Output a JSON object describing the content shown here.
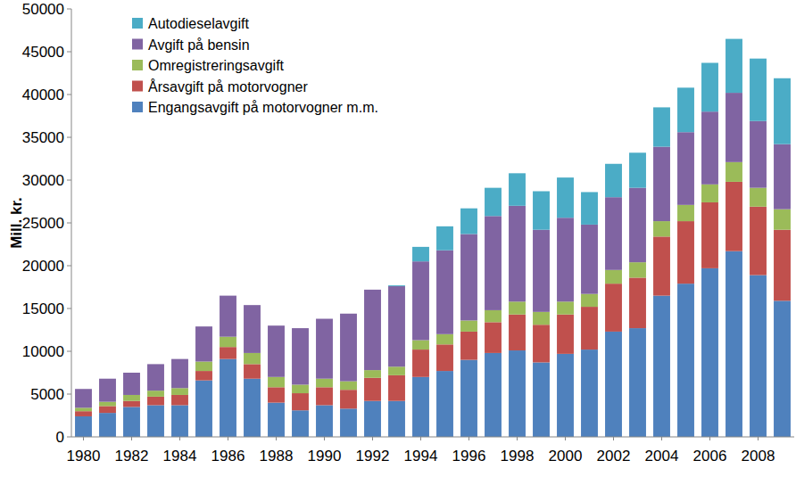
{
  "chart_data": {
    "type": "bar",
    "stacked": true,
    "grid": false,
    "legend": "upper left",
    "y_label": "Mill. kr.",
    "categories": [
      "1980",
      null,
      "1982",
      null,
      "1984",
      null,
      "1986",
      null,
      "1988",
      null,
      "1990",
      null,
      "1992",
      null,
      "1994",
      null,
      "1996",
      null,
      "1998",
      null,
      "2000",
      null,
      "2002",
      null,
      "2004",
      null,
      "2006",
      null,
      "2008",
      null
    ],
    "ylim": [
      0,
      50000
    ],
    "yticks": [
      0,
      5000,
      10000,
      15000,
      20000,
      25000,
      30000,
      35000,
      40000,
      45000,
      50000
    ],
    "series": [
      {
        "name": "Engangsavgift på motorvogner m.m.",
        "color": "#4f81bd",
        "values": [
          2400,
          2800,
          3500,
          3700,
          3700,
          6600,
          9100,
          6800,
          4000,
          3100,
          3700,
          3300,
          4200,
          4200,
          7000,
          7700,
          9000,
          9800,
          10100,
          8700,
          9700,
          10200,
          12300,
          12700,
          16500,
          17900,
          19700,
          21700,
          18900,
          15900
        ]
      },
      {
        "name": "Årsavgift på motorvogner",
        "color": "#c0504d",
        "values": [
          600,
          800,
          700,
          1000,
          1200,
          1100,
          1400,
          1700,
          1800,
          2000,
          2100,
          2200,
          2700,
          3000,
          3200,
          3100,
          3300,
          3600,
          4200,
          4400,
          4600,
          5000,
          5600,
          5900,
          6900,
          7300,
          7700,
          8100,
          8000,
          8300
        ]
      },
      {
        "name": "Omregistreringsavgift",
        "color": "#9bbb59",
        "values": [
          400,
          500,
          700,
          700,
          800,
          1100,
          1200,
          1300,
          1200,
          1000,
          1000,
          1000,
          900,
          1000,
          1100,
          1200,
          1300,
          1400,
          1500,
          1500,
          1500,
          1500,
          1600,
          1800,
          1800,
          1900,
          2100,
          2300,
          2200,
          2400
        ]
      },
      {
        "name": "Avgift på bensin",
        "color": "#8064a2",
        "values": [
          2200,
          2700,
          2600,
          3100,
          3400,
          4100,
          4800,
          5600,
          6000,
          6600,
          7000,
          7900,
          9400,
          9400,
          9200,
          9800,
          10100,
          11000,
          11200,
          9600,
          9800,
          8100,
          8500,
          8700,
          8700,
          8500,
          8500,
          8100,
          7800,
          7600
        ]
      },
      {
        "name": "Autodieselavgift",
        "color": "#4bacc6",
        "values": [
          0,
          0,
          0,
          0,
          0,
          0,
          0,
          0,
          0,
          0,
          0,
          0,
          0,
          100,
          1700,
          2800,
          3000,
          3300,
          3800,
          4500,
          4700,
          3800,
          3900,
          4100,
          4600,
          5200,
          5700,
          6300,
          7300,
          7700
        ]
      }
    ]
  }
}
